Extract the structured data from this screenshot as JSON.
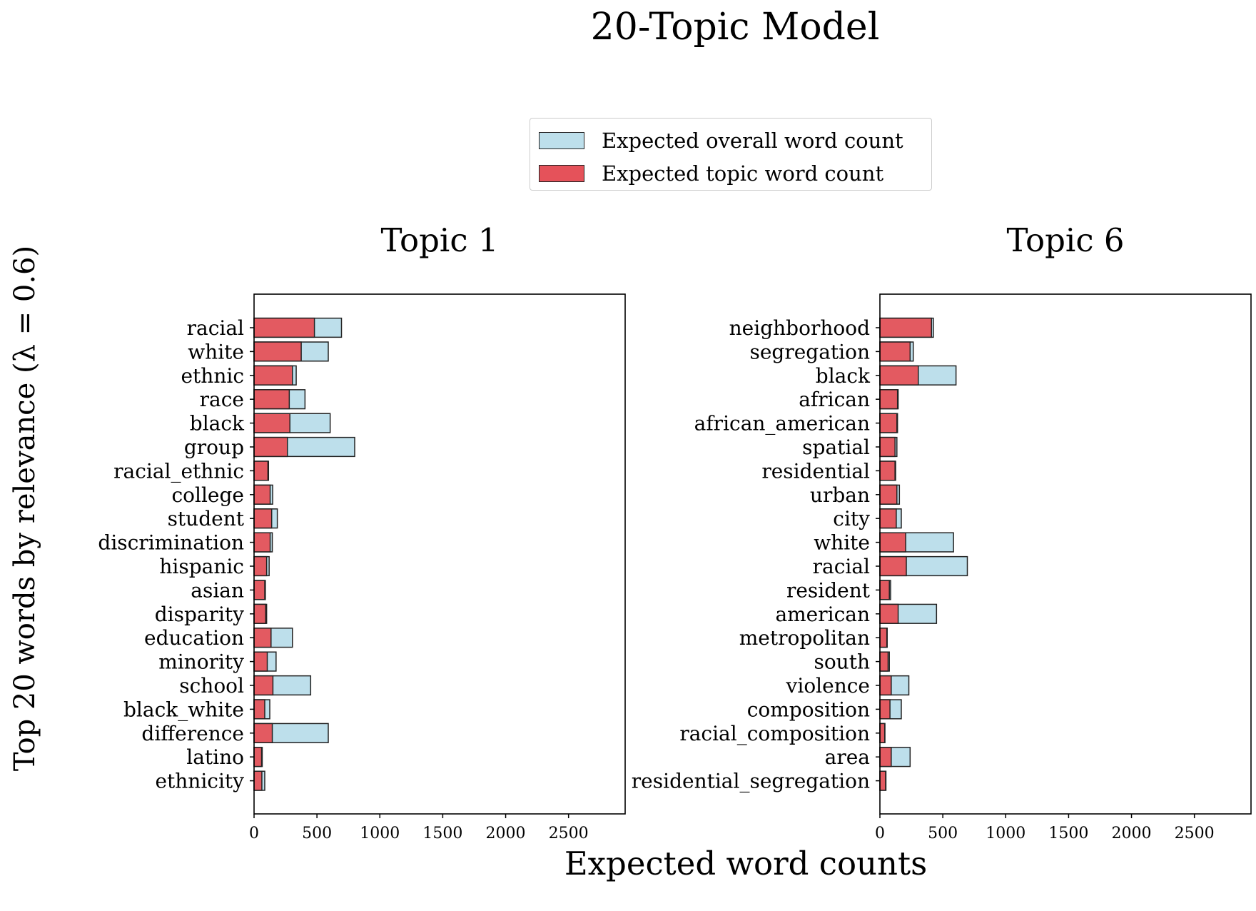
{
  "figure": {
    "title": "20-Topic Model",
    "xlabel": "Expected word counts",
    "ylabel": "Top 20 words by relevance (λ = 0.6)"
  },
  "legend": {
    "overall_label": "Expected overall word count",
    "topic_label": "Expected topic word count"
  },
  "colors": {
    "overall": "#bddfeb",
    "topic": "#e5525a",
    "edge": "#222222"
  },
  "chart_data": [
    {
      "type": "bar",
      "orientation": "horizontal",
      "title": "Topic 1",
      "xlim": [
        0,
        2950
      ],
      "xticks": [
        0,
        500,
        1000,
        1500,
        2000,
        2500
      ],
      "categories": [
        "racial",
        "white",
        "ethnic",
        "race",
        "black",
        "group",
        "racial_ethnic",
        "college",
        "student",
        "discrimination",
        "hispanic",
        "asian",
        "disparity",
        "education",
        "minority",
        "school",
        "black_white",
        "difference",
        "latino",
        "ethnicity"
      ],
      "series": [
        {
          "name": "Expected overall word count",
          "values": [
            695,
            590,
            335,
            405,
            605,
            800,
            115,
            148,
            185,
            145,
            120,
            90,
            100,
            305,
            175,
            450,
            125,
            590,
            65,
            85
          ]
        },
        {
          "name": "Expected topic word count",
          "values": [
            480,
            375,
            305,
            280,
            285,
            265,
            110,
            128,
            140,
            128,
            100,
            85,
            92,
            135,
            105,
            150,
            85,
            145,
            60,
            62
          ]
        }
      ]
    },
    {
      "type": "bar",
      "orientation": "horizontal",
      "title": "Topic 6",
      "xlim": [
        0,
        2950
      ],
      "xticks": [
        0,
        500,
        1000,
        1500,
        2000,
        2500
      ],
      "categories": [
        "neighborhood",
        "segregation",
        "black",
        "african",
        "african_american",
        "spatial",
        "residential",
        "urban",
        "city",
        "white",
        "racial",
        "resident",
        "american",
        "metropolitan",
        "south",
        "violence",
        "composition",
        "racial_composition",
        "area",
        "residential_segregation"
      ],
      "series": [
        {
          "name": "Expected overall word count",
          "values": [
            425,
            265,
            605,
            145,
            140,
            135,
            125,
            155,
            170,
            585,
            695,
            85,
            450,
            58,
            75,
            230,
            170,
            40,
            240,
            48
          ]
        },
        {
          "name": "Expected topic word count",
          "values": [
            410,
            240,
            305,
            140,
            135,
            120,
            120,
            135,
            130,
            205,
            210,
            75,
            145,
            55,
            65,
            90,
            80,
            38,
            90,
            45
          ]
        }
      ]
    }
  ]
}
